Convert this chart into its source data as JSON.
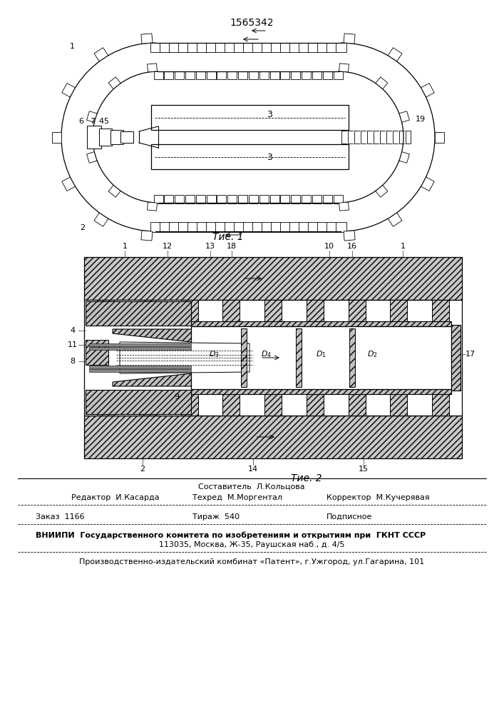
{
  "patent_number": "1565342",
  "fig1_caption": "Τие. 1",
  "fig2_caption": "Τие. 2",
  "footer": {
    "col1_row1": "Составитель  Л.Кольцова",
    "col1_row2": "Редактор  И.Касарда",
    "col2_row2": "Техред  М.Моргентал",
    "col3_row2": "Корректор  М.Кучерявая",
    "col1_row3": "Заказ  1166",
    "col2_row3": "Тираж  540",
    "col3_row3": "Подписное",
    "line4": "ВНИИПИ  Государственного комитета по изобретениям и открытиям при  ГКНТ СССР",
    "line5": "113035, Москва, Ж-35, Раушская наб., д. 4/5",
    "line6": "Производственно-издательский комбинат «Патент», г.Ужгород, ул.Гагарина, 101"
  },
  "bg_color": "#ffffff"
}
